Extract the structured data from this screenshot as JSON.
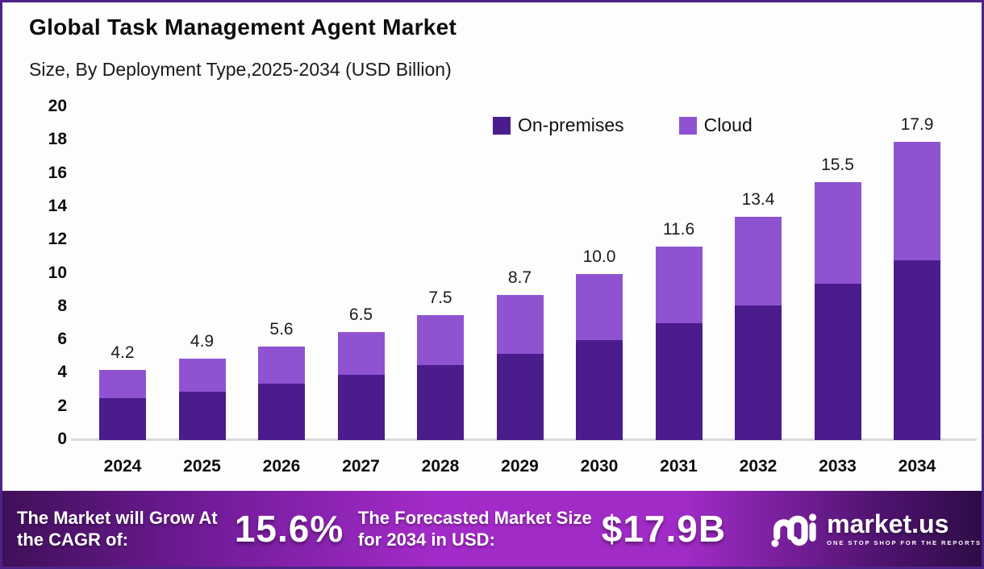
{
  "header": {
    "title": "Global Task Management Agent Market",
    "subtitle": "Size, By Deployment Type,2025-2034 (USD Billion)"
  },
  "colors": {
    "on_premises": "#4A1C8C",
    "cloud": "#8F53D2",
    "frame_border": "#4E2389",
    "axis_line": "#DADADA",
    "banner_center": "#A32BC9",
    "banner_edge": "#2E0C46"
  },
  "chart_data": {
    "type": "bar",
    "stacked": true,
    "title": "Global Task Management Agent Market Size, By Deployment Type, 2025-2034 (USD Billion)",
    "xlabel": "",
    "ylabel": "USD Billion",
    "ylim": [
      0,
      20
    ],
    "y_ticks": [
      0,
      2,
      4,
      6,
      8,
      10,
      12,
      14,
      16,
      18,
      20
    ],
    "grid": false,
    "legend_position": "top-right-inside",
    "categories": [
      "2024",
      "2025",
      "2026",
      "2027",
      "2028",
      "2029",
      "2030",
      "2031",
      "2032",
      "2033",
      "2034"
    ],
    "series": [
      {
        "name": "On-premises",
        "color": "#4A1C8C",
        "values": [
          2.5,
          2.9,
          3.4,
          3.9,
          4.5,
          5.2,
          6.0,
          7.0,
          8.1,
          9.4,
          10.8
        ]
      },
      {
        "name": "Cloud",
        "color": "#8F53D2",
        "values": [
          1.7,
          2.0,
          2.2,
          2.6,
          3.0,
          3.5,
          4.0,
          4.6,
          5.3,
          6.1,
          7.1
        ]
      }
    ],
    "totals": [
      4.2,
      4.9,
      5.6,
      6.5,
      7.5,
      8.7,
      10.0,
      11.6,
      13.4,
      15.5,
      17.9
    ],
    "total_labels": [
      "4.2",
      "4.9",
      "5.6",
      "6.5",
      "7.5",
      "8.7",
      "10.0",
      "11.6",
      "13.4",
      "15.5",
      "17.9"
    ]
  },
  "banner": {
    "cagr_label": "The Market will Grow At the CAGR of:",
    "cagr_value": "15.6%",
    "forecast_label": "The Forecasted Market Size for 2034 in USD:",
    "forecast_value": "$17.9B",
    "logo_name": "market.us",
    "logo_tagline": "ONE STOP SHOP FOR THE REPORTS"
  }
}
